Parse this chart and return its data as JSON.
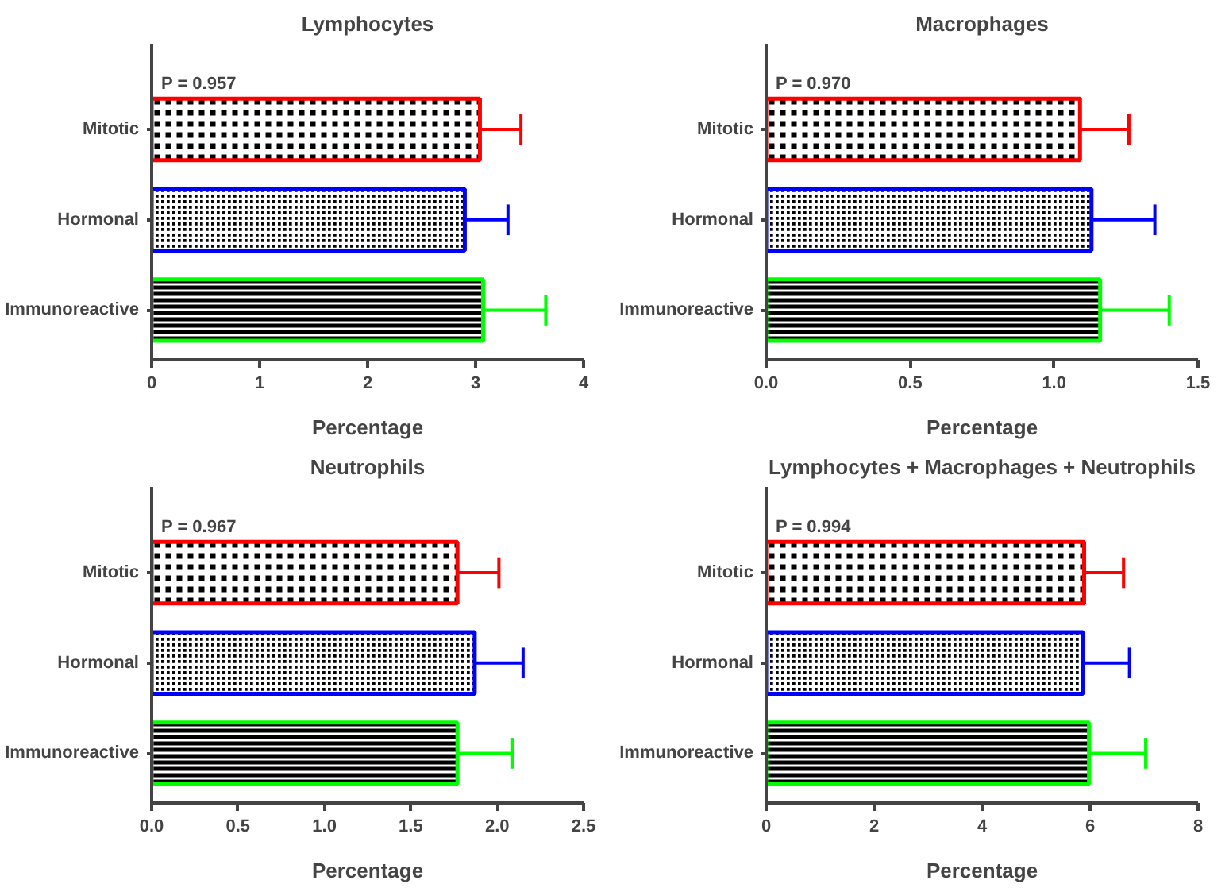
{
  "chart_data": [
    {
      "type": "bar",
      "orientation": "horizontal",
      "title": "Lymphocytes",
      "xlabel": "Percentage",
      "categories": [
        "Mitotic",
        "Hormonal",
        "Immunoreactive"
      ],
      "values": [
        3.04,
        2.9,
        3.07
      ],
      "errors": [
        [
          3.04,
          3.42
        ],
        [
          2.9,
          3.3
        ],
        [
          3.07,
          3.65
        ]
      ],
      "colors": [
        "#ff0000",
        "#0000ff",
        "#00ff00"
      ],
      "xlim": [
        0,
        4
      ],
      "xticks": [
        0,
        1,
        2,
        3,
        4
      ],
      "grid": false,
      "annotations": [
        "P = 0.957"
      ]
    },
    {
      "type": "bar",
      "orientation": "horizontal",
      "title": "Macrophages",
      "xlabel": "Percentage",
      "categories": [
        "Mitotic",
        "Hormonal",
        "Immunoreactive"
      ],
      "values": [
        1.09,
        1.13,
        1.16
      ],
      "errors": [
        [
          1.09,
          1.26
        ],
        [
          1.13,
          1.35
        ],
        [
          1.16,
          1.4
        ]
      ],
      "colors": [
        "#ff0000",
        "#0000ff",
        "#00ff00"
      ],
      "xlim": [
        0,
        1.5
      ],
      "xticks": [
        {
          "value": 0,
          "label": "0.0"
        },
        0.5,
        {
          "value": 1,
          "label": "1.0"
        },
        1.5
      ],
      "grid": false,
      "annotations": [
        "P = 0.970"
      ]
    },
    {
      "type": "bar",
      "orientation": "horizontal",
      "title": "Neutrophils",
      "xlabel": "Percentage",
      "categories": [
        "Mitotic",
        "Hormonal",
        "Immunoreactive"
      ],
      "values": [
        1.77,
        1.87,
        1.77
      ],
      "errors": [
        [
          1.77,
          2.01
        ],
        [
          1.87,
          2.15
        ],
        [
          1.77,
          2.09
        ]
      ],
      "colors": [
        "#ff0000",
        "#0000ff",
        "#00ff00"
      ],
      "xlim": [
        0,
        2.5
      ],
      "xticks": [
        {
          "value": 0,
          "label": "0.0"
        },
        0.5,
        {
          "value": 1,
          "label": "1.0"
        },
        1.5,
        {
          "value": 2,
          "label": "2.0"
        },
        2.5
      ],
      "grid": false,
      "annotations": [
        "P = 0.967"
      ]
    },
    {
      "type": "bar",
      "orientation": "horizontal",
      "title": "Lymphocytes + Macrophages + Neutrophils",
      "xlabel": "Percentage",
      "categories": [
        "Mitotic",
        "Hormonal",
        "Immunoreactive"
      ],
      "values": [
        5.89,
        5.87,
        5.98
      ],
      "errors": [
        [
          5.89,
          6.62
        ],
        [
          5.87,
          6.73
        ],
        [
          5.98,
          7.03
        ]
      ],
      "colors": [
        "#ff0000",
        "#0000ff",
        "#00ff00"
      ],
      "xlim": [
        0,
        8
      ],
      "xticks": [
        0,
        2,
        4,
        6,
        8
      ],
      "grid": false,
      "annotations": [
        "P = 0.994"
      ]
    }
  ]
}
